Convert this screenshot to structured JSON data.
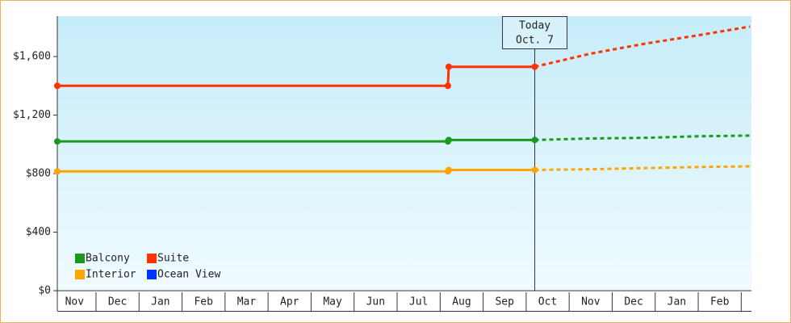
{
  "chart_data": {
    "type": "line",
    "x": [
      0.1,
      9.18,
      9.2,
      11.2,
      12.5,
      13.8,
      15.0,
      16.2
    ],
    "series": [
      {
        "name": "Balcony",
        "color": "#1a9a1a",
        "values": [
          1020,
          1020,
          1030,
          1030,
          1040,
          1045,
          1055,
          1060
        ]
      },
      {
        "name": "Suite",
        "color": "#ff3300",
        "values": [
          1400,
          1400,
          1530,
          1530,
          1620,
          1690,
          1745,
          1805
        ]
      },
      {
        "name": "Interior",
        "color": "#ffa500",
        "values": [
          815,
          815,
          825,
          825,
          830,
          838,
          845,
          850
        ]
      },
      {
        "name": "Ocean View",
        "color": "#0033ff",
        "values": [
          null,
          null,
          null,
          null,
          null,
          null,
          null,
          null
        ]
      }
    ],
    "today": {
      "x": 11.2,
      "label": "Today",
      "date": "Oct. 7"
    },
    "xlim": [
      0.1,
      16.2
    ],
    "xticks": [
      {
        "value": 0.5,
        "label": "Nov"
      },
      {
        "value": 1.5,
        "label": "Dec"
      },
      {
        "value": 2.5,
        "label": "Jan"
      },
      {
        "value": 3.5,
        "label": "Feb"
      },
      {
        "value": 4.5,
        "label": "Mar"
      },
      {
        "value": 5.5,
        "label": "Apr"
      },
      {
        "value": 6.5,
        "label": "May"
      },
      {
        "value": 7.5,
        "label": "Jun"
      },
      {
        "value": 8.5,
        "label": "Jul"
      },
      {
        "value": 9.5,
        "label": "Aug"
      },
      {
        "value": 10.5,
        "label": "Sep"
      },
      {
        "value": 11.5,
        "label": "Oct"
      },
      {
        "value": 12.5,
        "label": "Nov"
      },
      {
        "value": 13.5,
        "label": "Dec"
      },
      {
        "value": 14.5,
        "label": "Jan"
      },
      {
        "value": 15.5,
        "label": "Feb"
      }
    ],
    "ylim": [
      0,
      1876
    ],
    "yticks": [
      {
        "value": 0,
        "label": "$0"
      },
      {
        "value": 400,
        "label": "$400"
      },
      {
        "value": 800,
        "label": "$800"
      },
      {
        "value": 1200,
        "label": "$1,200"
      },
      {
        "value": 1600,
        "label": "$1,600"
      }
    ]
  }
}
